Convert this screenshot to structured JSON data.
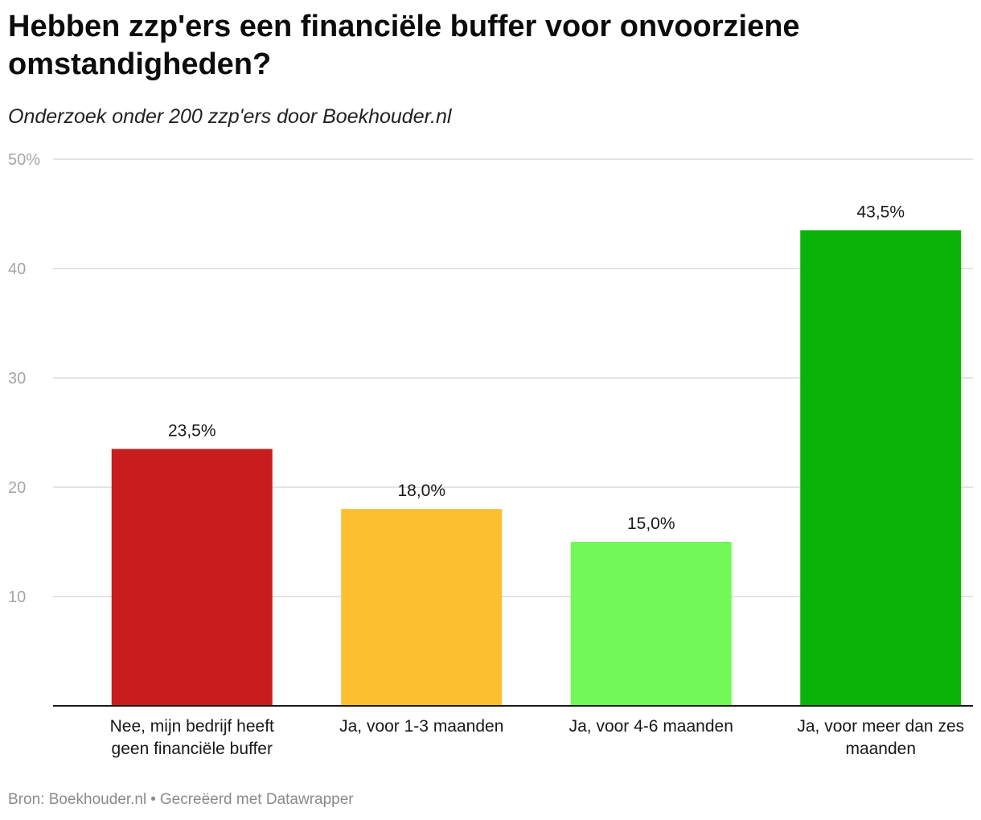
{
  "title": "Hebben zzp'ers een financiële buffer voor onvoorziene omstandigheden?",
  "subtitle": "Onderzoek onder 200 zzp'ers door Boekhouder.nl",
  "footer": {
    "source": "Bron: Boekhouder.nl",
    "separator": "•",
    "credit": "Gecreëerd met Datawrapper"
  },
  "chart_data": {
    "type": "bar",
    "categories": [
      [
        "Nee, mijn bedrijf heeft",
        "geen financiële buffer"
      ],
      [
        "Ja, voor 1-3 maanden"
      ],
      [
        "Ja, voor 4-6 maanden"
      ],
      [
        "Ja, voor meer dan zes",
        "maanden"
      ]
    ],
    "values": [
      23.5,
      18.0,
      15.0,
      43.5
    ],
    "value_labels": [
      "23,5%",
      "18,0%",
      "15,0%",
      "43,5%"
    ],
    "colors": [
      "#c71e1d",
      "#fcbf2f",
      "#72f859",
      "#0ab308"
    ],
    "ylim": [
      0,
      50
    ],
    "yticks": [
      10,
      20,
      30,
      40,
      50
    ],
    "ytick_labels": [
      "10",
      "20",
      "30",
      "40",
      "50%"
    ],
    "grid": true,
    "legend": false,
    "xlabel": "",
    "ylabel": ""
  }
}
